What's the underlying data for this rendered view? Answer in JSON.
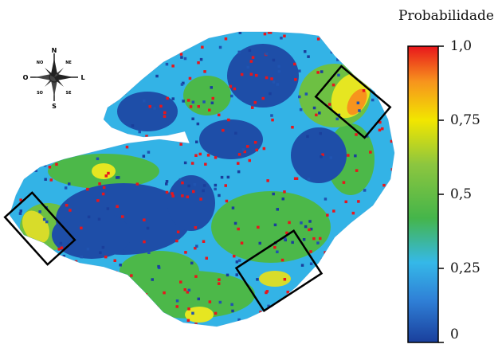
{
  "compass": {
    "north": "N",
    "south": "S",
    "west": "O",
    "east": "L",
    "northwest": "NO",
    "northeast": "NE",
    "southwest": "SO",
    "southeast": "SE"
  },
  "legend": {
    "title": "Probabilidade",
    "ticks": [
      {
        "label": "1,0",
        "value": 1.0
      },
      {
        "label": "0,75",
        "value": 0.75
      },
      {
        "label": "0,5",
        "value": 0.5
      },
      {
        "label": "0,25",
        "value": 0.25
      },
      {
        "label": "0",
        "value": 0.0
      }
    ],
    "colors": [
      "#1a3f9c",
      "#2f7fd6",
      "#35b8e8",
      "#45b54a",
      "#8cc63f",
      "#f2e600",
      "#f7941d",
      "#e8161c"
    ]
  },
  "highlight_boxes": [
    {
      "name": "box-northeast"
    },
    {
      "name": "box-west"
    },
    {
      "name": "box-southeast"
    }
  ]
}
